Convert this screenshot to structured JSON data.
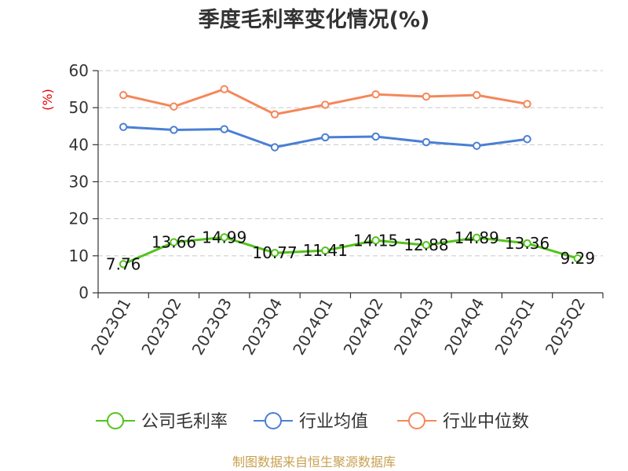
{
  "chart_data": {
    "type": "line",
    "title": "季度毛利率变化情况(%)",
    "unit_label": "(%)",
    "categories": [
      "2023Q1",
      "2023Q2",
      "2023Q3",
      "2023Q4",
      "2024Q1",
      "2024Q2",
      "2024Q3",
      "2024Q4",
      "2025Q1",
      "2025Q2"
    ],
    "ylim": [
      0,
      60
    ],
    "yticks": [
      0,
      10,
      20,
      30,
      40,
      50,
      60
    ],
    "grid": true,
    "legend_position": "bottom",
    "series": [
      {
        "name": "公司毛利率",
        "color": "#52c41a",
        "show_labels": true,
        "values": [
          7.76,
          13.66,
          14.99,
          10.77,
          11.41,
          14.15,
          12.88,
          14.89,
          13.36,
          9.29
        ],
        "labels": [
          "7.76",
          "13.66",
          "14.99",
          "10.77",
          "11.41",
          "14.15",
          "12.88",
          "14.89",
          "13.36",
          "9.29"
        ]
      },
      {
        "name": "行业均值",
        "color": "#4a7fd4",
        "show_labels": false,
        "values": [
          44.8,
          44.0,
          44.2,
          39.3,
          42.0,
          42.2,
          40.7,
          39.7,
          41.5,
          null
        ]
      },
      {
        "name": "行业中位数",
        "color": "#f5875a",
        "show_labels": false,
        "values": [
          53.4,
          50.3,
          55.0,
          48.2,
          50.8,
          53.6,
          53.0,
          53.4,
          51.0,
          null
        ]
      }
    ]
  },
  "source": "制图数据来自恒生聚源数据库"
}
